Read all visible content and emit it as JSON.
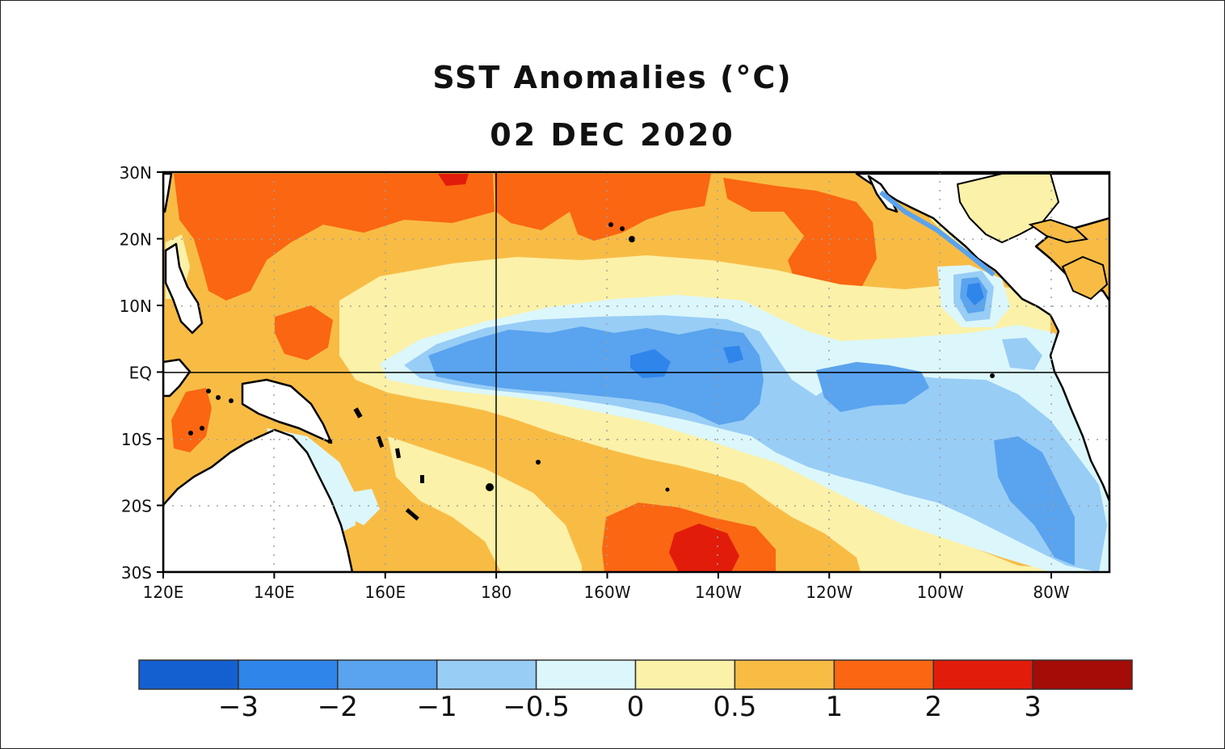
{
  "title": "SST Anomalies (°C)",
  "date": "02 DEC 2020",
  "map": {
    "lat_labels": [
      "30N",
      "20N",
      "10N",
      "EQ",
      "10S",
      "20S",
      "30S"
    ],
    "lon_labels": [
      "120E",
      "140E",
      "160E",
      "180",
      "160W",
      "140W",
      "120W",
      "100W",
      "80W"
    ]
  },
  "legend": {
    "colors": [
      "#1560d0",
      "#2f85ea",
      "#5aa3ee",
      "#98cdf6",
      "#dcf7fb",
      "#fbf1a8",
      "#f8bc45",
      "#fa6612",
      "#e21c0a",
      "#a40c08"
    ],
    "labels": [
      "−3",
      "−2",
      "−1",
      "−0.5",
      "0",
      "0.5",
      "1",
      "2",
      "3"
    ]
  },
  "colors": {
    "land": "#ffffff",
    "coast": "#000000",
    "grid": "#a0a0a0"
  }
}
